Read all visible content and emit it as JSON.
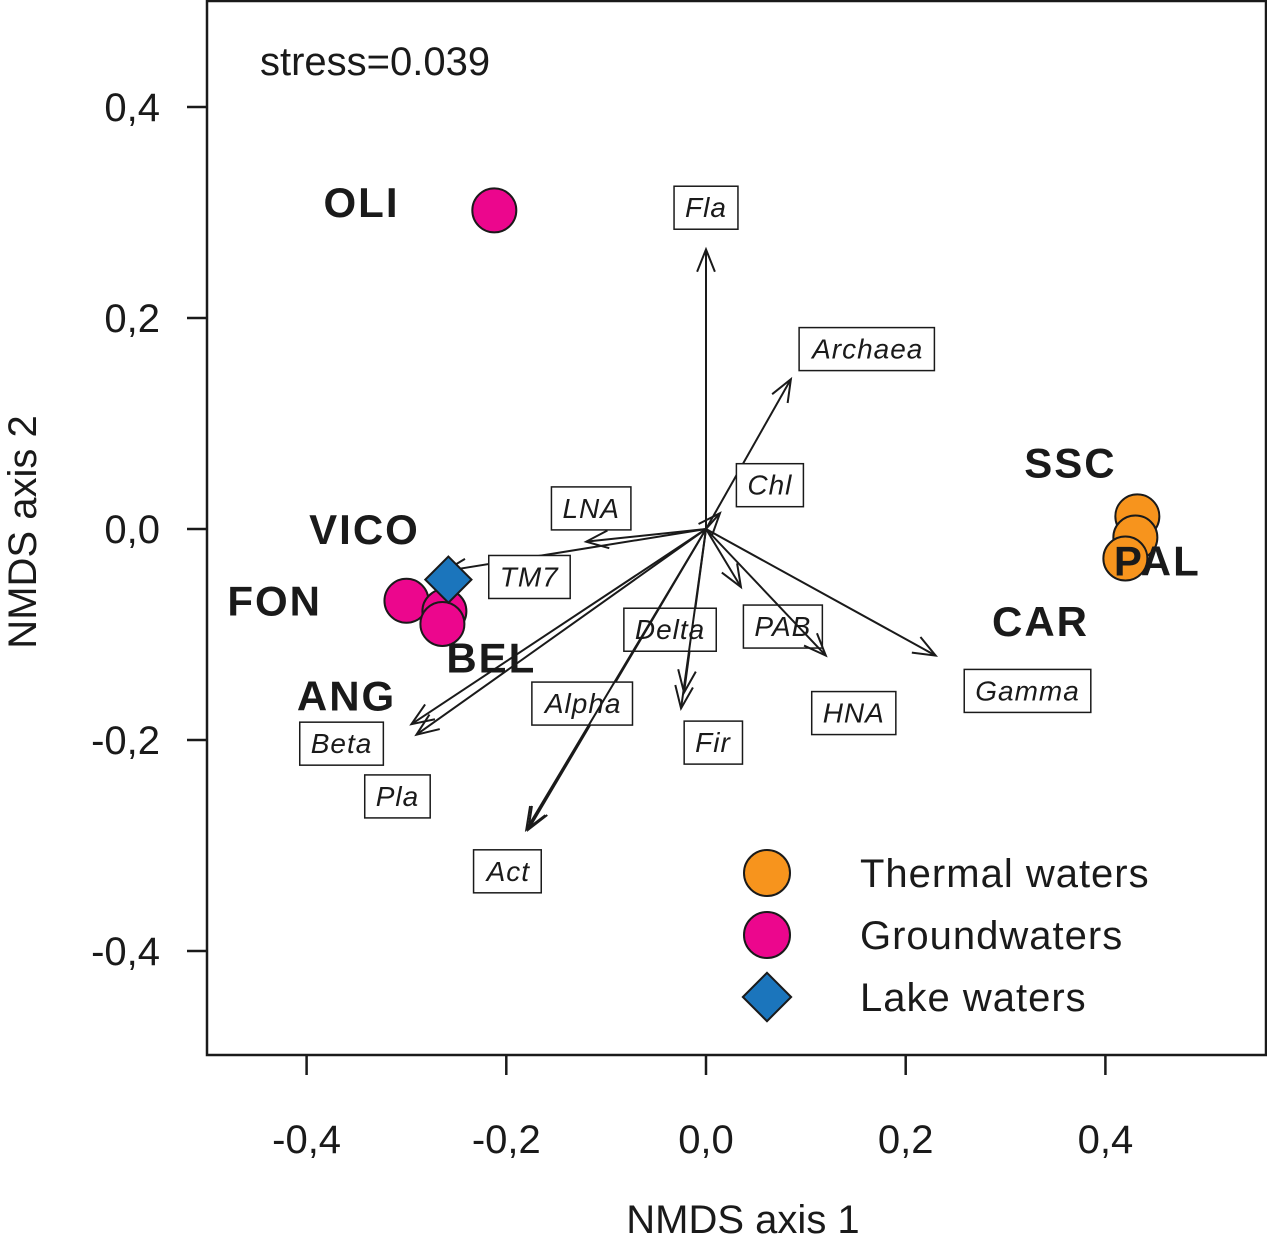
{
  "chart_data": {
    "type": "scatter",
    "annotation": "stress=0.039",
    "xlabel": "NMDS axis 1",
    "ylabel": "NMDS axis 2",
    "xlim": [
      -0.5,
      0.56
    ],
    "ylim": [
      -0.5,
      0.5
    ],
    "x_ticks": [
      {
        "value": -0.4,
        "label": "-0,4"
      },
      {
        "value": -0.2,
        "label": "-0,2"
      },
      {
        "value": 0.0,
        "label": "0,0"
      },
      {
        "value": 0.2,
        "label": "0,2"
      },
      {
        "value": 0.4,
        "label": "0,4"
      }
    ],
    "y_ticks": [
      {
        "value": 0.4,
        "label": "0,4"
      },
      {
        "value": 0.2,
        "label": "0,2"
      },
      {
        "value": 0.0,
        "label": "0,0"
      },
      {
        "value": -0.2,
        "label": "-0,2"
      },
      {
        "value": -0.4,
        "label": "-0,4"
      }
    ],
    "series": [
      {
        "name": "Thermal waters",
        "marker": "circle",
        "color": "#f7941d",
        "points": [
          {
            "label": "SSC",
            "x": 0.432,
            "y": 0.012
          },
          {
            "label": "PAL",
            "x": 0.43,
            "y": -0.008
          },
          {
            "label": "CAR",
            "x": 0.42,
            "y": -0.028
          }
        ]
      },
      {
        "name": "Groundwaters",
        "marker": "circle",
        "color": "#ec068d",
        "points": [
          {
            "label": "OLI",
            "x": -0.212,
            "y": 0.302
          },
          {
            "label": "FON",
            "x": -0.3,
            "y": -0.068
          },
          {
            "label": "BEL",
            "x": -0.262,
            "y": -0.078
          },
          {
            "label": "ANG",
            "x": -0.264,
            "y": -0.09
          }
        ]
      },
      {
        "name": "Lake waters",
        "marker": "diamond",
        "color": "#1b75bc",
        "points": [
          {
            "label": "VICO",
            "x": -0.258,
            "y": -0.048
          }
        ]
      }
    ],
    "site_labels": [
      {
        "text": "OLI",
        "x": -0.345,
        "y": 0.31
      },
      {
        "text": "SSC",
        "x": 0.365,
        "y": 0.063
      },
      {
        "text": "PAL",
        "x": 0.452,
        "y": -0.03
      },
      {
        "text": "CAR",
        "x": 0.335,
        "y": -0.087
      },
      {
        "text": "VICO",
        "x": -0.342,
        "y": 0.0
      },
      {
        "text": "FON",
        "x": -0.432,
        "y": -0.068
      },
      {
        "text": "BEL",
        "x": -0.215,
        "y": -0.122
      },
      {
        "text": "ANG",
        "x": -0.36,
        "y": -0.158
      }
    ],
    "vectors": [
      {
        "name": "Fla",
        "x": 0.0,
        "y": 0.265,
        "label_x": 0.0,
        "label_y": 0.305
      },
      {
        "name": "Archaea",
        "x": 0.085,
        "y": 0.142,
        "label_x": 0.162,
        "label_y": 0.171
      },
      {
        "name": "Chl",
        "x": 0.014,
        "y": 0.015,
        "label_x": 0.064,
        "label_y": 0.042
      },
      {
        "name": "LNA",
        "x": -0.12,
        "y": -0.012,
        "label_x": -0.115,
        "label_y": 0.02
      },
      {
        "name": "TM7",
        "x": -0.262,
        "y": -0.04,
        "label_x": -0.177,
        "label_y": -0.045
      },
      {
        "name": "PAB",
        "x": 0.035,
        "y": -0.055,
        "label_x": 0.077,
        "label_y": -0.092
      },
      {
        "name": "Delta",
        "x": -0.022,
        "y": -0.155,
        "label_x": -0.036,
        "label_y": -0.095
      },
      {
        "name": "Gamma",
        "x": 0.23,
        "y": -0.12,
        "label_x": 0.322,
        "label_y": -0.153
      },
      {
        "name": "HNA",
        "x": 0.12,
        "y": -0.12,
        "label_x": 0.148,
        "label_y": -0.174
      },
      {
        "name": "Fir",
        "x": -0.025,
        "y": -0.17,
        "label_x": 0.007,
        "label_y": -0.202
      },
      {
        "name": "Alpha",
        "x": -0.178,
        "y": -0.285,
        "label_x": -0.123,
        "label_y": -0.165
      },
      {
        "name": "Beta",
        "x": -0.29,
        "y": -0.195,
        "label_x": -0.365,
        "label_y": -0.203
      },
      {
        "name": "Pla",
        "x": -0.295,
        "y": -0.185,
        "label_x": -0.309,
        "label_y": -0.253
      },
      {
        "name": "Act",
        "x": -0.18,
        "y": -0.285,
        "label_x": -0.198,
        "label_y": -0.324
      }
    ],
    "legend": [
      {
        "label": "Thermal waters",
        "marker": "circle",
        "color": "#f7941d"
      },
      {
        "label": "Groundwaters",
        "marker": "circle",
        "color": "#ec068d"
      },
      {
        "label": "Lake waters",
        "marker": "diamond",
        "color": "#1b75bc"
      }
    ],
    "legend_position": "bottom-right",
    "colors": {
      "axis": "#1a1a1a",
      "text": "#1a1a1a",
      "box_fill": "#ffffff"
    }
  }
}
